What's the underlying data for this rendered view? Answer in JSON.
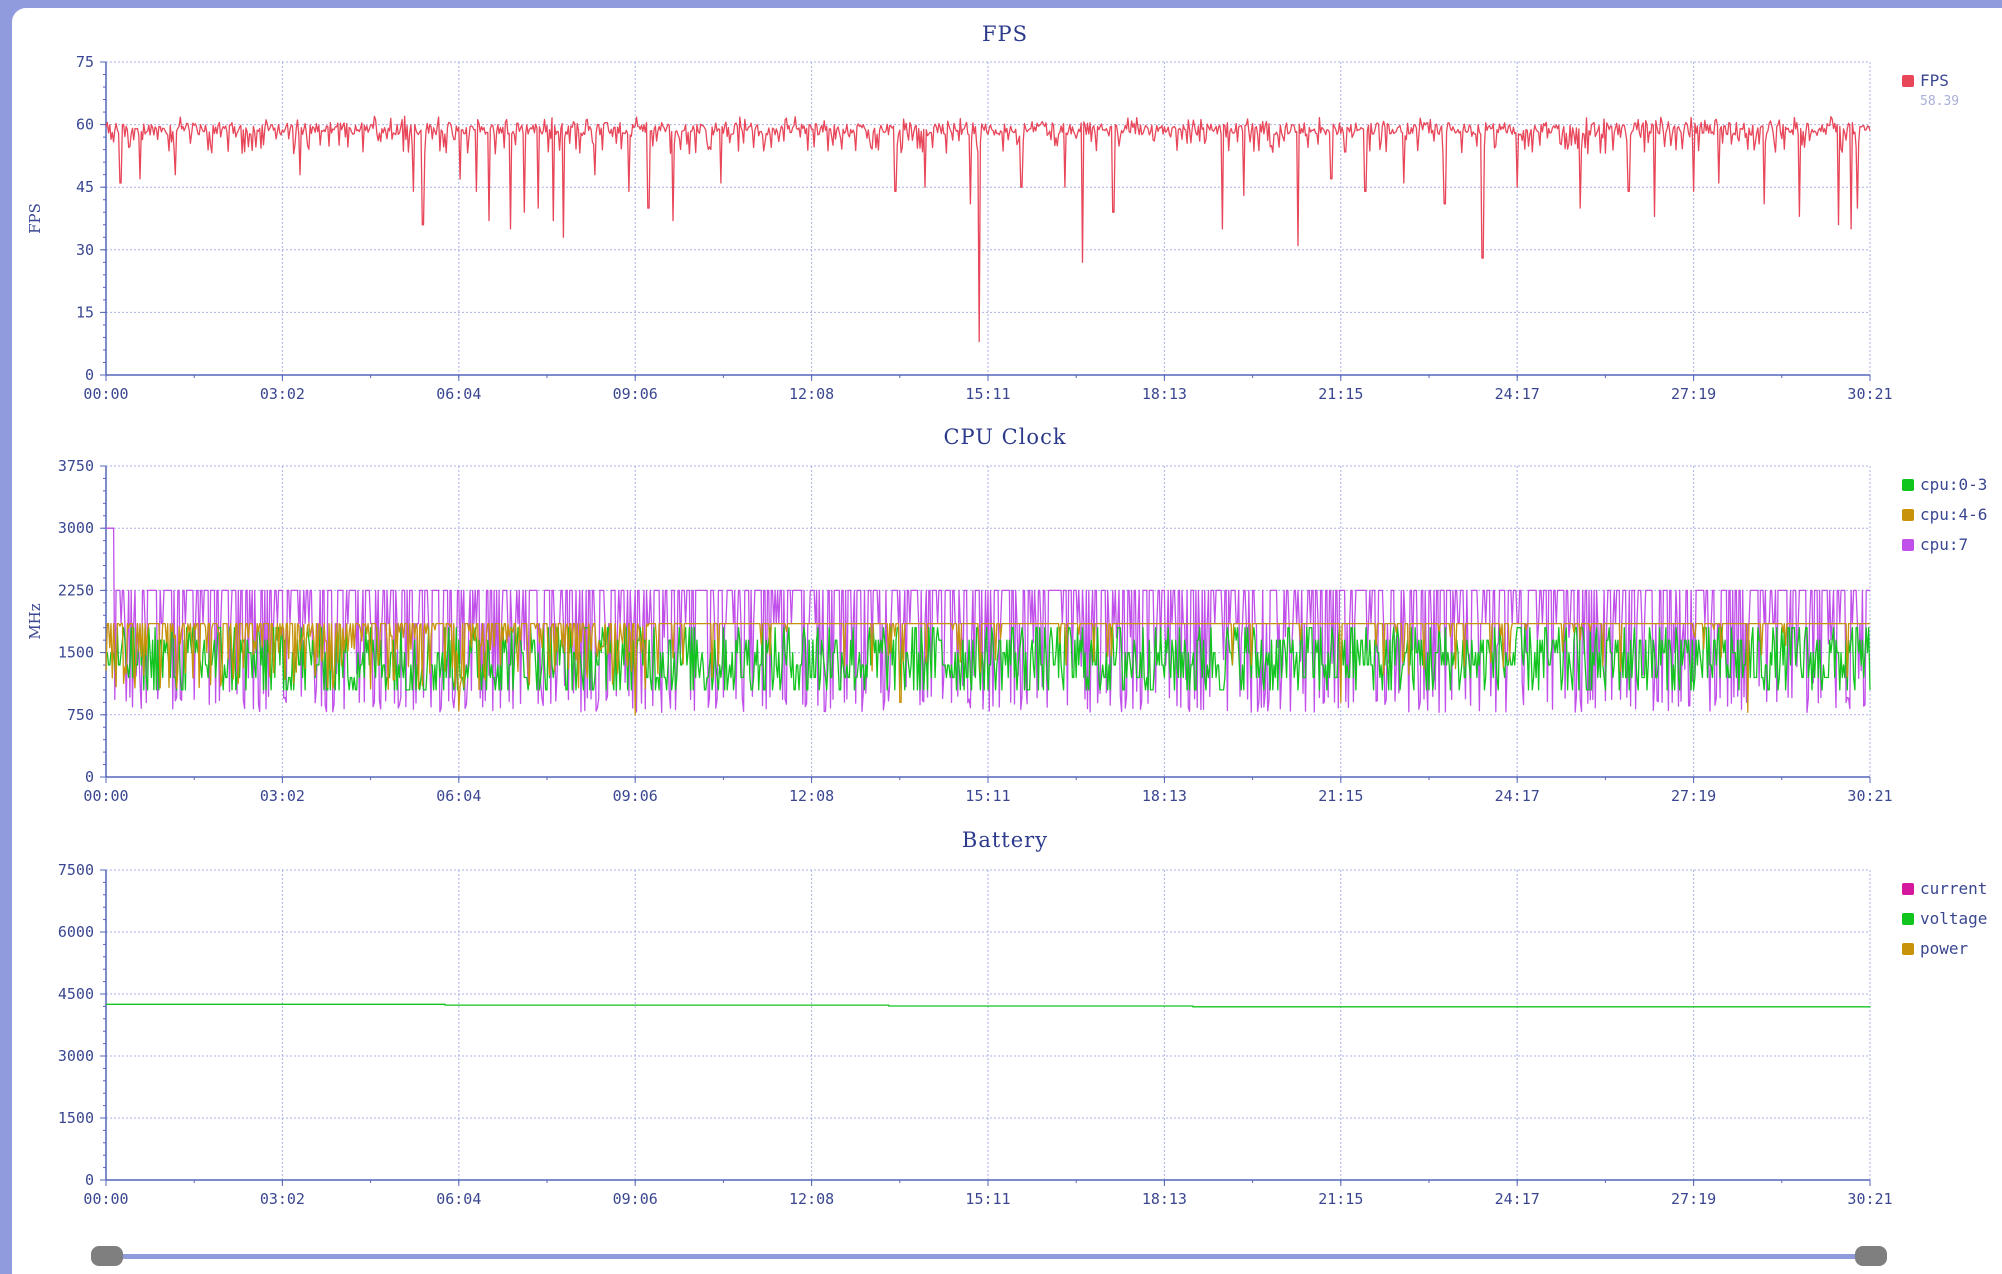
{
  "chart_data": [
    {
      "id": "fps",
      "type": "line",
      "title": "FPS",
      "ylabel": "FPS",
      "xlabel": "",
      "ylim": [
        0,
        75
      ],
      "y_ticks": [
        "0",
        "15",
        "30",
        "45",
        "60",
        "75"
      ],
      "x_ticks": [
        "00:00",
        "03:02",
        "06:04",
        "09:06",
        "12:08",
        "15:11",
        "18:13",
        "21:15",
        "24:17",
        "27:19",
        "30:21"
      ],
      "xlim_seconds": [
        0,
        1821
      ],
      "grid": true,
      "legend_placement": "top-right",
      "series": [
        {
          "name": "FPS",
          "color": "#e8475a",
          "legend_value": "58.39",
          "baseline": 59,
          "typical_range": [
            53,
            62
          ],
          "dips": [
            {
              "x": "00:15",
              "y": 46
            },
            {
              "x": "00:35",
              "y": 47
            },
            {
              "x": "01:12",
              "y": 48
            },
            {
              "x": "03:20",
              "y": 48
            },
            {
              "x": "05:17",
              "y": 44
            },
            {
              "x": "05:27",
              "y": 36
            },
            {
              "x": "06:06",
              "y": 47
            },
            {
              "x": "06:22",
              "y": 44
            },
            {
              "x": "06:35",
              "y": 37
            },
            {
              "x": "06:58",
              "y": 35
            },
            {
              "x": "07:12",
              "y": 39
            },
            {
              "x": "07:26",
              "y": 40
            },
            {
              "x": "07:42",
              "y": 37
            },
            {
              "x": "07:52",
              "y": 33
            },
            {
              "x": "08:25",
              "y": 48
            },
            {
              "x": "09:00",
              "y": 44
            },
            {
              "x": "09:20",
              "y": 40
            },
            {
              "x": "09:45",
              "y": 37
            },
            {
              "x": "10:35",
              "y": 46
            },
            {
              "x": "13:35",
              "y": 44
            },
            {
              "x": "14:05",
              "y": 45
            },
            {
              "x": "14:52",
              "y": 41
            },
            {
              "x": "15:01",
              "y": 8
            },
            {
              "x": "15:45",
              "y": 45
            },
            {
              "x": "16:30",
              "y": 45
            },
            {
              "x": "16:48",
              "y": 27
            },
            {
              "x": "17:20",
              "y": 39
            },
            {
              "x": "19:12",
              "y": 35
            },
            {
              "x": "19:35",
              "y": 43
            },
            {
              "x": "20:30",
              "y": 31
            },
            {
              "x": "21:05",
              "y": 47
            },
            {
              "x": "21:40",
              "y": 44
            },
            {
              "x": "22:20",
              "y": 46
            },
            {
              "x": "23:02",
              "y": 41
            },
            {
              "x": "23:41",
              "y": 28
            },
            {
              "x": "24:17",
              "y": 45
            },
            {
              "x": "25:22",
              "y": 40
            },
            {
              "x": "26:12",
              "y": 44
            },
            {
              "x": "26:39",
              "y": 38
            },
            {
              "x": "27:19",
              "y": 44
            },
            {
              "x": "27:45",
              "y": 46
            },
            {
              "x": "28:32",
              "y": 41
            },
            {
              "x": "29:08",
              "y": 38
            },
            {
              "x": "29:49",
              "y": 36
            },
            {
              "x": "30:01",
              "y": 35
            },
            {
              "x": "30:08",
              "y": 40
            }
          ]
        }
      ]
    },
    {
      "id": "cpu",
      "type": "line",
      "title": "CPU Clock",
      "ylabel": "MHz",
      "xlabel": "",
      "ylim": [
        0,
        3750
      ],
      "y_ticks": [
        "0",
        "750",
        "1500",
        "2250",
        "3000",
        "3750"
      ],
      "x_ticks": [
        "00:00",
        "03:02",
        "06:04",
        "09:06",
        "12:08",
        "15:11",
        "18:13",
        "21:15",
        "24:17",
        "27:19",
        "30:21"
      ],
      "xlim_seconds": [
        0,
        1821
      ],
      "grid": true,
      "legend_placement": "top-right",
      "series": [
        {
          "name": "cpu:0-3",
          "color": "#12c41e",
          "range": [
            1050,
            1850
          ],
          "levels": [
            1050,
            1200,
            1350,
            1500,
            1650,
            1800
          ]
        },
        {
          "name": "cpu:4-6",
          "color": "#c8920a",
          "baseline": 1850,
          "range": [
            750,
            1900
          ],
          "drops": [
            {
              "x": "09:06",
              "y": 750
            },
            {
              "x": "06:04",
              "y": 800
            },
            {
              "x": "13:40",
              "y": 900
            },
            {
              "x": "21:15",
              "y": 900
            },
            {
              "x": "28:15",
              "y": 780
            }
          ]
        },
        {
          "name": "cpu:7",
          "color": "#c150ea",
          "baseline": 2250,
          "range": [
            750,
            2250
          ],
          "max_spike": {
            "x": "00:04",
            "y": 3000
          }
        }
      ]
    },
    {
      "id": "battery",
      "type": "line",
      "title": "Battery",
      "ylabel": "",
      "xlabel": "",
      "ylim": [
        0,
        7500
      ],
      "y_ticks": [
        "0",
        "1500",
        "3000",
        "4500",
        "6000",
        "7500"
      ],
      "x_ticks": [
        "00:00",
        "03:02",
        "06:04",
        "09:06",
        "12:08",
        "15:11",
        "18:13",
        "21:15",
        "24:17",
        "27:19",
        "30:21"
      ],
      "xlim_seconds": [
        0,
        1821
      ],
      "grid": true,
      "legend_placement": "top-right",
      "series": [
        {
          "name": "current",
          "color": "#d4199e",
          "values": []
        },
        {
          "name": "voltage",
          "color": "#12c41e",
          "steps": [
            {
              "x": "00:00",
              "y": 4250
            },
            {
              "x": "05:50",
              "y": 4230
            },
            {
              "x": "13:28",
              "y": 4210
            },
            {
              "x": "18:42",
              "y": 4190
            },
            {
              "x": "30:21",
              "y": 4180
            }
          ]
        },
        {
          "name": "power",
          "color": "#c8920a",
          "values": []
        }
      ]
    }
  ],
  "slider": {
    "start": 0,
    "end": 1
  }
}
